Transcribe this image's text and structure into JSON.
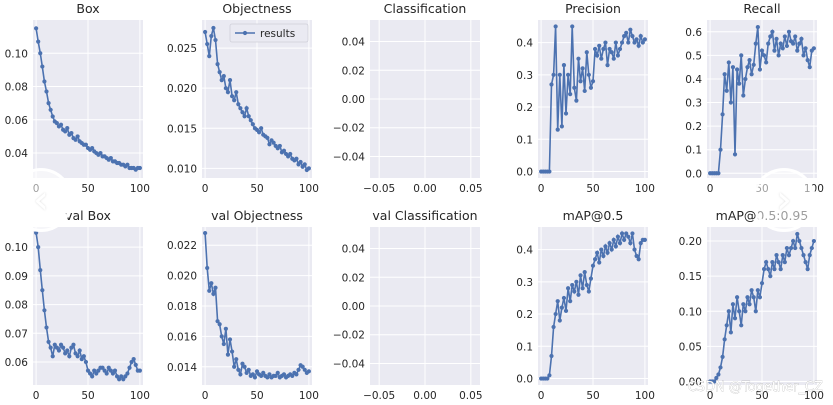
{
  "watermark": "CSDN @Together_CZ",
  "nav": {
    "prev_symbol": "‹",
    "next_symbol": "›"
  },
  "colors": {
    "series": "#4c72b0",
    "background": "#eaeaf2",
    "grid": "#ffffff",
    "text": "#262626"
  },
  "chart_data": [
    {
      "type": "line",
      "title": "Box",
      "xlim": [
        -3,
        103
      ],
      "xticks": [
        0,
        50,
        100
      ],
      "ylim": [
        0.025,
        0.12
      ],
      "yticks": [
        0.04,
        0.06,
        0.08,
        0.1
      ],
      "yticklabels": [
        "0.04",
        "0.06",
        "0.08",
        "0.10"
      ],
      "x": [
        0,
        2,
        4,
        6,
        8,
        10,
        12,
        14,
        16,
        18,
        20,
        22,
        24,
        26,
        28,
        30,
        32,
        34,
        36,
        38,
        40,
        42,
        44,
        46,
        48,
        50,
        52,
        54,
        56,
        58,
        60,
        62,
        64,
        66,
        68,
        70,
        72,
        74,
        76,
        78,
        80,
        82,
        84,
        86,
        88,
        90,
        92,
        94,
        96,
        98,
        100
      ],
      "values": [
        0.115,
        0.107,
        0.1,
        0.092,
        0.083,
        0.077,
        0.07,
        0.066,
        0.062,
        0.059,
        0.058,
        0.056,
        0.057,
        0.054,
        0.053,
        0.055,
        0.051,
        0.052,
        0.049,
        0.048,
        0.05,
        0.047,
        0.046,
        0.045,
        0.045,
        0.043,
        0.042,
        0.043,
        0.041,
        0.04,
        0.039,
        0.04,
        0.038,
        0.038,
        0.037,
        0.036,
        0.037,
        0.035,
        0.035,
        0.034,
        0.034,
        0.033,
        0.033,
        0.032,
        0.033,
        0.031,
        0.031,
        0.031,
        0.03,
        0.031,
        0.031
      ]
    },
    {
      "type": "line",
      "title": "Objectness",
      "xlim": [
        -3,
        103
      ],
      "xticks": [
        0,
        50,
        100
      ],
      "ylim": [
        0.0088,
        0.0285
      ],
      "yticks": [
        0.01,
        0.015,
        0.02,
        0.025
      ],
      "yticklabels": [
        "0.010",
        "0.015",
        "0.020",
        "0.025"
      ],
      "legend": "results",
      "x": [
        0,
        2,
        4,
        6,
        8,
        10,
        12,
        14,
        16,
        18,
        20,
        22,
        24,
        26,
        28,
        30,
        32,
        34,
        36,
        38,
        40,
        42,
        44,
        46,
        48,
        50,
        52,
        54,
        56,
        58,
        60,
        62,
        64,
        66,
        68,
        70,
        72,
        74,
        76,
        78,
        80,
        82,
        84,
        86,
        88,
        90,
        92,
        94,
        96,
        98,
        100
      ],
      "values": [
        0.027,
        0.0255,
        0.024,
        0.0265,
        0.0275,
        0.026,
        0.023,
        0.022,
        0.021,
        0.0215,
        0.02,
        0.0195,
        0.021,
        0.019,
        0.0185,
        0.0195,
        0.018,
        0.0175,
        0.017,
        0.0165,
        0.0175,
        0.0165,
        0.016,
        0.0155,
        0.015,
        0.0148,
        0.0145,
        0.015,
        0.0142,
        0.014,
        0.0138,
        0.013,
        0.0135,
        0.0132,
        0.0128,
        0.0125,
        0.0128,
        0.012,
        0.0122,
        0.0118,
        0.0115,
        0.0118,
        0.0112,
        0.011,
        0.0112,
        0.0105,
        0.0108,
        0.0102,
        0.0105,
        0.0098,
        0.01
      ]
    },
    {
      "type": "line",
      "title": "Classification",
      "xlim": [
        -0.06,
        0.06
      ],
      "xticks": [
        -0.05,
        0,
        0.05
      ],
      "xticklabels": [
        "−0.05",
        "0.00",
        "0.05"
      ],
      "ylim": [
        -0.055,
        0.055
      ],
      "yticks": [
        -0.04,
        -0.02,
        0,
        0.02,
        0.04
      ],
      "yticklabels": [
        "−0.04",
        "−0.02",
        "0.00",
        "0.02",
        "0.04"
      ],
      "x": [],
      "values": []
    },
    {
      "type": "line",
      "title": "Precision",
      "xlim": [
        -3,
        103
      ],
      "xticks": [
        0,
        50,
        100
      ],
      "ylim": [
        -0.02,
        0.47
      ],
      "yticks": [
        0,
        0.1,
        0.2,
        0.3,
        0.4
      ],
      "yticklabels": [
        "0.0",
        "0.1",
        "0.2",
        "0.3",
        "0.4"
      ],
      "x": [
        0,
        2,
        4,
        6,
        8,
        10,
        12,
        14,
        16,
        18,
        20,
        22,
        24,
        26,
        28,
        30,
        32,
        34,
        36,
        38,
        40,
        42,
        44,
        46,
        48,
        50,
        52,
        54,
        56,
        58,
        60,
        62,
        64,
        66,
        68,
        70,
        72,
        74,
        76,
        78,
        80,
        82,
        84,
        86,
        88,
        90,
        92,
        94,
        96,
        98,
        100
      ],
      "values": [
        0,
        0,
        0,
        0,
        0,
        0.27,
        0.3,
        0.45,
        0.13,
        0.3,
        0.14,
        0.33,
        0.18,
        0.3,
        0.24,
        0.45,
        0.26,
        0.22,
        0.35,
        0.28,
        0.32,
        0.25,
        0.37,
        0.3,
        0.26,
        0.28,
        0.38,
        0.36,
        0.39,
        0.35,
        0.38,
        0.4,
        0.33,
        0.38,
        0.37,
        0.35,
        0.4,
        0.36,
        0.38,
        0.4,
        0.42,
        0.43,
        0.4,
        0.44,
        0.42,
        0.4,
        0.41,
        0.39,
        0.42,
        0.4,
        0.41
      ]
    },
    {
      "type": "line",
      "title": "Recall",
      "xlim": [
        -3,
        103
      ],
      "xticks": [
        0,
        50,
        100
      ],
      "ylim": [
        -0.02,
        0.65
      ],
      "yticks": [
        0,
        0.1,
        0.2,
        0.3,
        0.4,
        0.5,
        0.6
      ],
      "yticklabels": [
        "0.0",
        "0.1",
        "0.2",
        "0.3",
        "0.4",
        "0.5",
        "0.6"
      ],
      "x": [
        0,
        2,
        4,
        6,
        8,
        10,
        12,
        14,
        16,
        18,
        20,
        22,
        24,
        26,
        28,
        30,
        32,
        34,
        36,
        38,
        40,
        42,
        44,
        46,
        48,
        50,
        52,
        54,
        56,
        58,
        60,
        62,
        64,
        66,
        68,
        70,
        72,
        74,
        76,
        78,
        80,
        82,
        84,
        86,
        88,
        90,
        92,
        94,
        96,
        98,
        100
      ],
      "values": [
        0,
        0,
        0,
        0,
        0,
        0.1,
        0.25,
        0.42,
        0.35,
        0.47,
        0.3,
        0.45,
        0.08,
        0.44,
        0.38,
        0.5,
        0.33,
        0.4,
        0.45,
        0.48,
        0.42,
        0.46,
        0.55,
        0.62,
        0.44,
        0.52,
        0.5,
        0.47,
        0.55,
        0.58,
        0.6,
        0.52,
        0.57,
        0.5,
        0.55,
        0.53,
        0.58,
        0.54,
        0.6,
        0.56,
        0.55,
        0.58,
        0.52,
        0.55,
        0.57,
        0.5,
        0.53,
        0.48,
        0.45,
        0.52,
        0.53
      ]
    },
    {
      "type": "line",
      "title": "val Box",
      "xlim": [
        -3,
        103
      ],
      "xticks": [
        0,
        50,
        100
      ],
      "ylim": [
        0.052,
        0.107
      ],
      "yticks": [
        0.06,
        0.07,
        0.08,
        0.09,
        0.1
      ],
      "yticklabels": [
        "0.06",
        "0.07",
        "0.08",
        "0.09",
        "0.10"
      ],
      "x": [
        0,
        2,
        4,
        6,
        8,
        10,
        12,
        14,
        16,
        18,
        20,
        22,
        24,
        26,
        28,
        30,
        32,
        34,
        36,
        38,
        40,
        42,
        44,
        46,
        48,
        50,
        52,
        54,
        56,
        58,
        60,
        62,
        64,
        66,
        68,
        70,
        72,
        74,
        76,
        78,
        80,
        82,
        84,
        86,
        88,
        90,
        92,
        94,
        96,
        98,
        100
      ],
      "values": [
        0.105,
        0.1,
        0.092,
        0.085,
        0.078,
        0.072,
        0.067,
        0.065,
        0.062,
        0.066,
        0.065,
        0.064,
        0.066,
        0.065,
        0.063,
        0.064,
        0.062,
        0.065,
        0.066,
        0.063,
        0.062,
        0.064,
        0.061,
        0.062,
        0.06,
        0.057,
        0.056,
        0.055,
        0.057,
        0.056,
        0.057,
        0.058,
        0.058,
        0.057,
        0.056,
        0.058,
        0.057,
        0.056,
        0.057,
        0.055,
        0.054,
        0.055,
        0.054,
        0.055,
        0.056,
        0.058,
        0.06,
        0.061,
        0.059,
        0.057,
        0.057
      ]
    },
    {
      "type": "line",
      "title": "val Objectness",
      "xlim": [
        -3,
        103
      ],
      "xticks": [
        0,
        50,
        100
      ],
      "ylim": [
        0.0128,
        0.0232
      ],
      "yticks": [
        0.014,
        0.016,
        0.018,
        0.02,
        0.022
      ],
      "yticklabels": [
        "0.014",
        "0.016",
        "0.018",
        "0.020",
        "0.022"
      ],
      "x": [
        0,
        2,
        4,
        6,
        8,
        10,
        12,
        14,
        16,
        18,
        20,
        22,
        24,
        26,
        28,
        30,
        32,
        34,
        36,
        38,
        40,
        42,
        44,
        46,
        48,
        50,
        52,
        54,
        56,
        58,
        60,
        62,
        64,
        66,
        68,
        70,
        72,
        74,
        76,
        78,
        80,
        82,
        84,
        86,
        88,
        90,
        92,
        94,
        96,
        98,
        100
      ],
      "values": [
        0.0228,
        0.0205,
        0.019,
        0.0195,
        0.0188,
        0.0192,
        0.017,
        0.0168,
        0.016,
        0.0155,
        0.0165,
        0.0148,
        0.0158,
        0.015,
        0.014,
        0.0145,
        0.0138,
        0.0135,
        0.0142,
        0.014,
        0.0136,
        0.0138,
        0.0134,
        0.0135,
        0.0133,
        0.0137,
        0.0135,
        0.0134,
        0.0136,
        0.0134,
        0.0133,
        0.0135,
        0.0133,
        0.0134,
        0.0134,
        0.0136,
        0.0133,
        0.0134,
        0.0135,
        0.0133,
        0.0134,
        0.0135,
        0.0134,
        0.0136,
        0.0135,
        0.0138,
        0.0141,
        0.014,
        0.0138,
        0.0136,
        0.0137
      ]
    },
    {
      "type": "line",
      "title": "val Classification",
      "xlim": [
        -0.06,
        0.06
      ],
      "xticks": [
        -0.05,
        0,
        0.05
      ],
      "xticklabels": [
        "−0.05",
        "0.00",
        "0.05"
      ],
      "ylim": [
        -0.055,
        0.055
      ],
      "yticks": [
        -0.04,
        -0.02,
        0,
        0.02,
        0.04
      ],
      "yticklabels": [
        "−0.04",
        "−0.02",
        "0.00",
        "0.02",
        "0.04"
      ],
      "x": [],
      "values": []
    },
    {
      "type": "line",
      "title": "mAP@0.5",
      "xlim": [
        -3,
        103
      ],
      "xticks": [
        0,
        50,
        100
      ],
      "ylim": [
        -0.02,
        0.47
      ],
      "yticks": [
        0,
        0.1,
        0.2,
        0.3,
        0.4
      ],
      "yticklabels": [
        "0.0",
        "0.1",
        "0.2",
        "0.3",
        "0.4"
      ],
      "x": [
        0,
        2,
        4,
        6,
        8,
        10,
        12,
        14,
        16,
        18,
        20,
        22,
        24,
        26,
        28,
        30,
        32,
        34,
        36,
        38,
        40,
        42,
        44,
        46,
        48,
        50,
        52,
        54,
        56,
        58,
        60,
        62,
        64,
        66,
        68,
        70,
        72,
        74,
        76,
        78,
        80,
        82,
        84,
        86,
        88,
        90,
        92,
        94,
        96,
        98,
        100
      ],
      "values": [
        0,
        0,
        0,
        0,
        0.01,
        0.07,
        0.16,
        0.2,
        0.24,
        0.18,
        0.22,
        0.25,
        0.21,
        0.28,
        0.24,
        0.29,
        0.27,
        0.3,
        0.26,
        0.32,
        0.28,
        0.33,
        0.29,
        0.27,
        0.31,
        0.35,
        0.37,
        0.39,
        0.36,
        0.4,
        0.38,
        0.41,
        0.39,
        0.42,
        0.4,
        0.43,
        0.41,
        0.44,
        0.42,
        0.45,
        0.43,
        0.45,
        0.44,
        0.42,
        0.45,
        0.4,
        0.38,
        0.37,
        0.42,
        0.43,
        0.43
      ]
    },
    {
      "type": "line",
      "title": "mAP@0.5:0.95",
      "xlim": [
        -3,
        103
      ],
      "xticks": [
        0,
        50,
        100
      ],
      "ylim": [
        -0.005,
        0.22
      ],
      "yticks": [
        0,
        0.05,
        0.1,
        0.15,
        0.2
      ],
      "yticklabels": [
        "0.00",
        "0.05",
        "0.10",
        "0.15",
        "0.20"
      ],
      "x": [
        0,
        2,
        4,
        6,
        8,
        10,
        12,
        14,
        16,
        18,
        20,
        22,
        24,
        26,
        28,
        30,
        32,
        34,
        36,
        38,
        40,
        42,
        44,
        46,
        48,
        50,
        52,
        54,
        56,
        58,
        60,
        62,
        64,
        66,
        68,
        70,
        72,
        74,
        76,
        78,
        80,
        82,
        84,
        86,
        88,
        90,
        92,
        94,
        96,
        98,
        100
      ],
      "values": [
        0,
        0,
        0,
        0.005,
        0.01,
        0.02,
        0.035,
        0.06,
        0.08,
        0.1,
        0.07,
        0.11,
        0.09,
        0.12,
        0.1,
        0.08,
        0.11,
        0.1,
        0.12,
        0.11,
        0.13,
        0.12,
        0.1,
        0.13,
        0.12,
        0.14,
        0.16,
        0.17,
        0.16,
        0.15,
        0.17,
        0.16,
        0.18,
        0.17,
        0.16,
        0.18,
        0.17,
        0.19,
        0.18,
        0.19,
        0.2,
        0.19,
        0.21,
        0.2,
        0.19,
        0.18,
        0.17,
        0.16,
        0.18,
        0.19,
        0.2
      ]
    }
  ]
}
